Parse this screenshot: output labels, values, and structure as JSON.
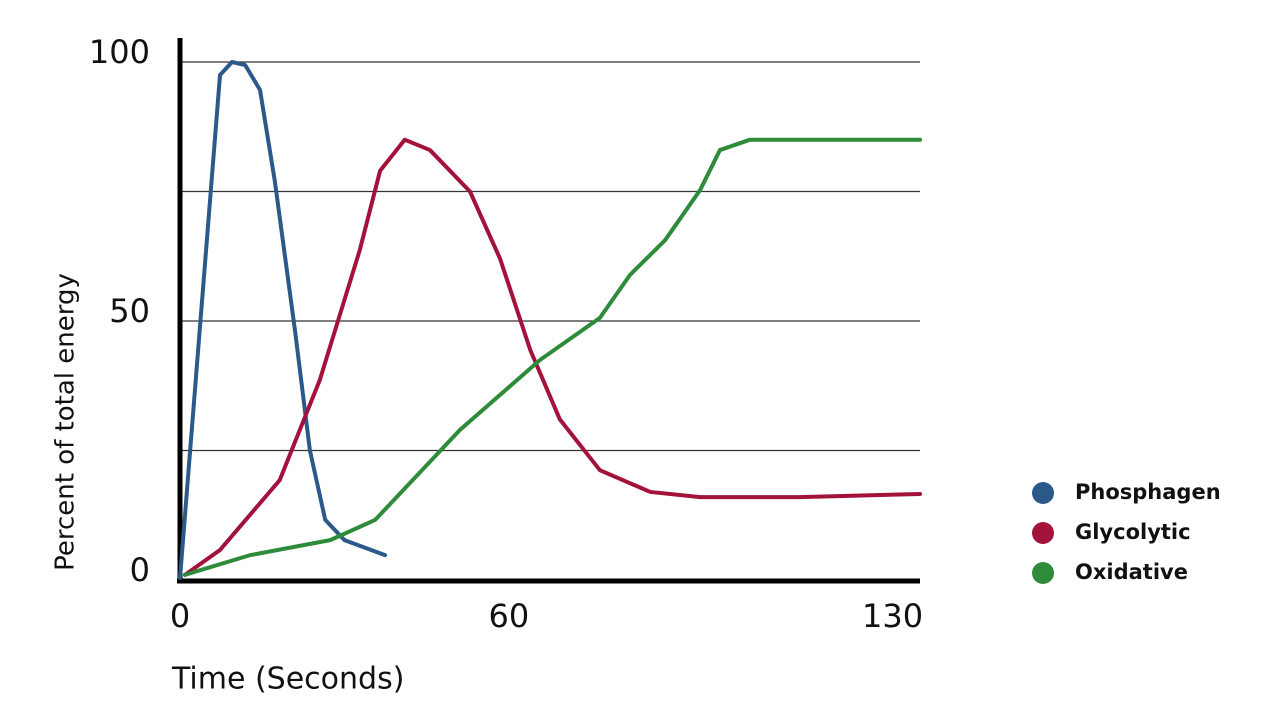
{
  "chart_data": {
    "type": "line",
    "x_label": "Time (Seconds)",
    "y_label": "Percent of total energy",
    "xlim": [
      0,
      135
    ],
    "xticks": [
      0,
      60,
      130
    ],
    "ylim": [
      0,
      100
    ],
    "yticks": [
      0,
      50,
      100
    ],
    "gridlines": [
      25,
      50,
      75,
      100
    ],
    "grid": true,
    "legend": "right",
    "series": [
      {
        "name": "Phosphagen",
        "color": "#2b5a8a",
        "x": [
          0,
          7.3,
          9.5,
          11.9,
          14.6,
          17.3,
          21,
          23.7,
          26.5,
          30,
          37.4
        ],
        "values": [
          0.4,
          97.5,
          100,
          99.4,
          94.6,
          77,
          48,
          25,
          11.6,
          7.7,
          4.8
        ]
      },
      {
        "name": "Glycolytic",
        "color": "#a3123a",
        "x": [
          0.9,
          7.3,
          18.2,
          25.5,
          32.8,
          36.5,
          41,
          45.6,
          52.9,
          58.4,
          63.9,
          69.3,
          76.6,
          85.8,
          94.9,
          113,
          135
        ],
        "values": [
          1,
          5.8,
          19.3,
          38.6,
          63.7,
          79,
          85,
          83,
          75,
          62,
          44.4,
          31,
          21.2,
          17,
          16,
          16,
          16.6
        ]
      },
      {
        "name": "Oxidative",
        "color": "#2e8b3a",
        "x": [
          0.9,
          12.8,
          27.4,
          35.6,
          51.1,
          65.7,
          76.6,
          82.1,
          88.5,
          94.9,
          98.5,
          104,
          135
        ],
        "values": [
          1,
          4.8,
          7.7,
          11.6,
          29,
          42.5,
          50.6,
          58.9,
          65.6,
          75.3,
          83,
          85,
          85
        ]
      }
    ]
  }
}
